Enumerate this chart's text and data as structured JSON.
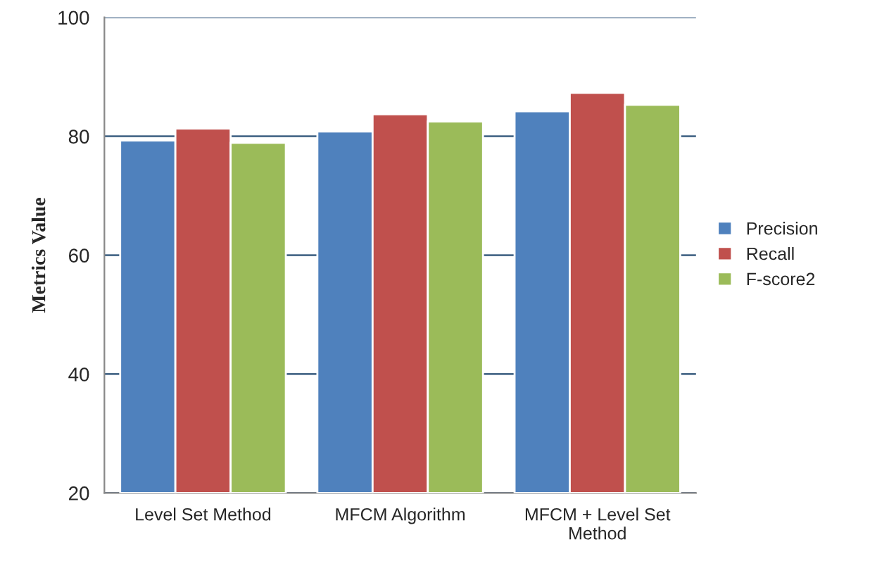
{
  "chart_data": {
    "type": "bar",
    "ylabel": "Metrics Value",
    "categories": [
      "Level Set Method",
      "MFCM Algorithm",
      "MFCM + Level Set\nMethod"
    ],
    "series": [
      {
        "name": "Precision",
        "color": "#4f81bd",
        "values": [
          79.3,
          80.8,
          84.2
        ]
      },
      {
        "name": "Recall",
        "color": "#c0504d",
        "values": [
          81.3,
          83.7,
          87.3
        ]
      },
      {
        "name": "F-score2",
        "color": "#9bbb59",
        "values": [
          78.9,
          82.5,
          85.3
        ]
      }
    ],
    "ylim": [
      20,
      100
    ],
    "yticks": [
      20,
      40,
      60,
      80,
      100
    ],
    "grid": "y",
    "legend": "right"
  }
}
